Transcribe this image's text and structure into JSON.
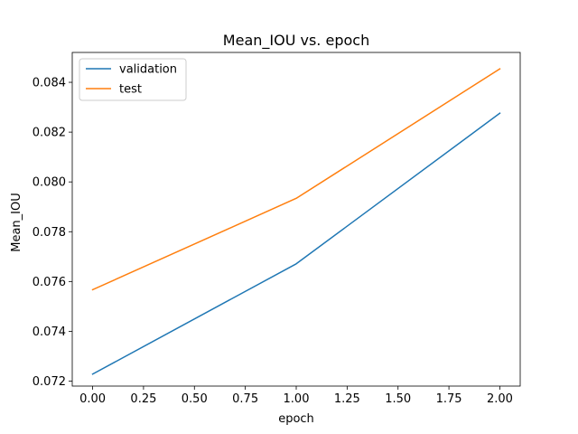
{
  "chart_data": {
    "type": "line",
    "title": "Mean_IOU vs. epoch",
    "xlabel": "epoch",
    "ylabel": "Mean_IOU",
    "xlim": [
      -0.1,
      2.1
    ],
    "ylim": [
      0.0718,
      0.0852
    ],
    "xticks": [
      0.0,
      0.25,
      0.5,
      0.75,
      1.0,
      1.25,
      1.5,
      1.75,
      2.0
    ],
    "xtick_labels": [
      "0.00",
      "0.25",
      "0.50",
      "0.75",
      "1.00",
      "1.25",
      "1.50",
      "1.75",
      "2.00"
    ],
    "yticks": [
      0.072,
      0.074,
      0.076,
      0.078,
      0.08,
      0.082,
      0.084
    ],
    "ytick_labels": [
      "0.072",
      "0.074",
      "0.076",
      "0.078",
      "0.080",
      "0.082",
      "0.084"
    ],
    "x": [
      0,
      1,
      2
    ],
    "series": [
      {
        "name": "validation",
        "color": "#1f77b4",
        "values": [
          0.07228,
          0.07671,
          0.08276
        ]
      },
      {
        "name": "test",
        "color": "#ff7f0e",
        "values": [
          0.07567,
          0.07934,
          0.08454
        ]
      }
    ],
    "legend": "top-left",
    "grid": false
  }
}
